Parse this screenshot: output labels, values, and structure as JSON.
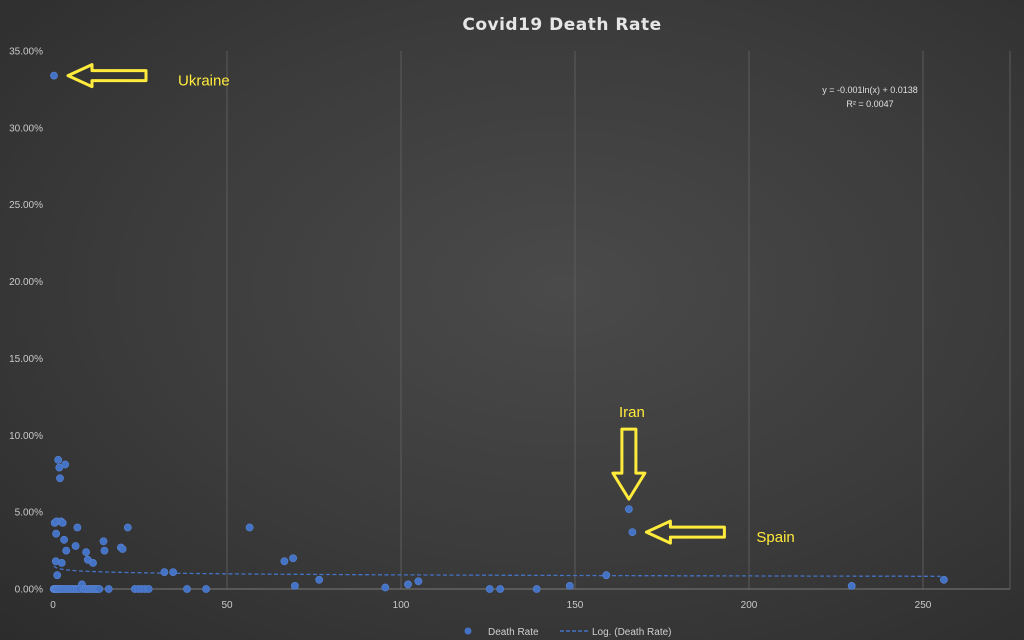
{
  "chart_data": {
    "type": "scatter",
    "title": "Covid19 Death Rate",
    "xlim": [
      0,
      275
    ],
    "ylim": [
      0,
      0.35
    ],
    "x_ticks": [
      0,
      50,
      100,
      150,
      200,
      250
    ],
    "x_tick_labels": [
      "0",
      "50",
      "100",
      "150",
      "200",
      "250"
    ],
    "y_ticks": [
      0,
      0.05,
      0.1,
      0.15,
      0.2,
      0.25,
      0.3,
      0.35
    ],
    "y_tick_labels": [
      "0.00%",
      "5.00%",
      "10.00%",
      "15.00%",
      "20.00%",
      "25.00%",
      "30.00%",
      "35.00%"
    ],
    "grid": "vertical",
    "legend_position": "bottom",
    "colors": {
      "marker": "#4472c4",
      "trendline": "#4472c4",
      "annotation": "#ffeb3b"
    },
    "series": [
      {
        "name": "Death Rate",
        "points": [
          [
            0.3,
            0.334
          ],
          [
            0.5,
            0.043
          ],
          [
            0.8,
            0.018
          ],
          [
            0.9,
            0.036
          ],
          [
            1.0,
            0.044
          ],
          [
            1.5,
            0.084
          ],
          [
            1.8,
            0.079
          ],
          [
            2.0,
            0.072
          ],
          [
            2.3,
            0.044
          ],
          [
            2.8,
            0.043
          ],
          [
            3.5,
            0.081
          ],
          [
            1.2,
            0.009
          ],
          [
            2.5,
            0.017
          ],
          [
            3.2,
            0.032
          ],
          [
            3.8,
            0.025
          ],
          [
            6.5,
            0.028
          ],
          [
            7.0,
            0.04
          ],
          [
            9.5,
            0.024
          ],
          [
            10.0,
            0.019
          ],
          [
            11.5,
            0.017
          ],
          [
            14.5,
            0.031
          ],
          [
            14.8,
            0.025
          ],
          [
            19.5,
            0.027
          ],
          [
            20.0,
            0.026
          ],
          [
            21.5,
            0.04
          ],
          [
            32.0,
            0.011
          ],
          [
            34.5,
            0.011
          ],
          [
            56.5,
            0.04
          ],
          [
            66.5,
            0.018
          ],
          [
            69.0,
            0.02
          ],
          [
            76.5,
            0.006
          ],
          [
            69.5,
            0.002
          ],
          [
            95.5,
            0.001
          ],
          [
            102.0,
            0.003
          ],
          [
            105.0,
            0.005
          ],
          [
            125.5,
            0.0
          ],
          [
            128.5,
            0.0
          ],
          [
            139.0,
            0.0
          ],
          [
            148.5,
            0.002
          ],
          [
            159.0,
            0.009
          ],
          [
            165.5,
            0.052
          ],
          [
            166.5,
            0.037
          ],
          [
            229.5,
            0.002
          ],
          [
            256.0,
            0.006
          ],
          [
            0.2,
            0.0
          ],
          [
            0.4,
            0.0
          ],
          [
            0.6,
            0.0
          ],
          [
            0.8,
            0.0
          ],
          [
            1.0,
            0.0
          ],
          [
            1.3,
            0.0
          ],
          [
            1.6,
            0.0
          ],
          [
            2.0,
            0.0
          ],
          [
            2.4,
            0.0
          ],
          [
            2.8,
            0.0
          ],
          [
            3.3,
            0.0
          ],
          [
            3.8,
            0.0
          ],
          [
            4.3,
            0.0
          ],
          [
            4.8,
            0.0
          ],
          [
            5.3,
            0.0
          ],
          [
            5.8,
            0.0
          ],
          [
            6.3,
            0.0
          ],
          [
            6.8,
            0.0
          ],
          [
            7.3,
            0.0
          ],
          [
            7.8,
            0.0
          ],
          [
            8.3,
            0.003
          ],
          [
            8.8,
            0.0
          ],
          [
            9.3,
            0.0
          ],
          [
            9.8,
            0.0
          ],
          [
            10.3,
            0.0
          ],
          [
            10.8,
            0.0
          ],
          [
            11.3,
            0.0
          ],
          [
            11.8,
            0.0
          ],
          [
            12.3,
            0.0
          ],
          [
            12.8,
            0.0
          ],
          [
            13.3,
            0.0
          ],
          [
            16.0,
            0.0
          ],
          [
            23.5,
            0.0
          ],
          [
            24.5,
            0.0
          ],
          [
            25.5,
            0.0
          ],
          [
            26.5,
            0.0
          ],
          [
            27.5,
            0.0
          ],
          [
            38.5,
            0.0
          ],
          [
            44.0,
            0.0
          ]
        ]
      },
      {
        "name": "Log. (Death Rate)",
        "type": "trendline",
        "equation_a": -0.001,
        "equation_b": 0.0138
      }
    ],
    "trendline_equation": "y = -0.001ln(x) + 0.0138",
    "r_squared": "R² = 0.0047",
    "annotations": [
      {
        "label": "Ukraine",
        "target": [
          0.3,
          0.334
        ],
        "direction": "left"
      },
      {
        "label": "Iran",
        "target": [
          165.5,
          0.052
        ],
        "direction": "down"
      },
      {
        "label": "Spain",
        "target": [
          166.5,
          0.037
        ],
        "direction": "left"
      }
    ]
  }
}
